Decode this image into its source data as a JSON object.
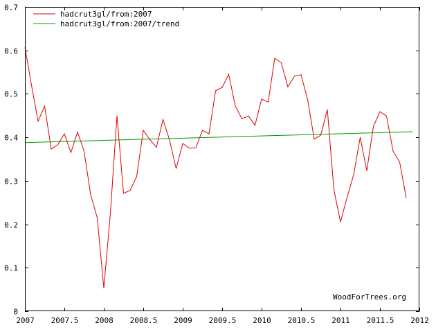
{
  "chart_data": {
    "type": "line",
    "title": "",
    "xlabel": "",
    "ylabel": "",
    "xlim": [
      2007,
      2012
    ],
    "ylim": [
      0,
      0.7
    ],
    "grid": false,
    "legend_position": "top-left",
    "x_ticks": [
      "2007",
      "2007.5",
      "2008",
      "2008.5",
      "2009",
      "2009.5",
      "2010",
      "2010.5",
      "2011",
      "2011.5",
      "2012"
    ],
    "y_ticks": [
      "0",
      "0.1",
      "0.2",
      "0.3",
      "0.4",
      "0.5",
      "0.6",
      "0.7"
    ],
    "series": [
      {
        "name": "hadcrut3gl/from:2007",
        "color": "#dd0000",
        "x": [
          2007.0,
          2007.083,
          2007.167,
          2007.25,
          2007.333,
          2007.417,
          2007.5,
          2007.583,
          2007.667,
          2007.75,
          2007.833,
          2007.917,
          2008.0,
          2008.083,
          2008.167,
          2008.25,
          2008.333,
          2008.417,
          2008.5,
          2008.583,
          2008.667,
          2008.75,
          2008.833,
          2008.917,
          2009.0,
          2009.083,
          2009.167,
          2009.25,
          2009.333,
          2009.417,
          2009.5,
          2009.583,
          2009.667,
          2009.75,
          2009.833,
          2009.917,
          2010.0,
          2010.083,
          2010.167,
          2010.25,
          2010.333,
          2010.417,
          2010.5,
          2010.583,
          2010.667,
          2010.75,
          2010.833,
          2010.917,
          2011.0,
          2011.083,
          2011.167,
          2011.25,
          2011.333,
          2011.417,
          2011.5,
          2011.583,
          2011.667,
          2011.75,
          2011.833
        ],
        "y": [
          0.607,
          0.52,
          0.437,
          0.472,
          0.373,
          0.383,
          0.408,
          0.365,
          0.412,
          0.368,
          0.268,
          0.215,
          0.053,
          0.225,
          0.45,
          0.271,
          0.278,
          0.31,
          0.416,
          0.395,
          0.377,
          0.441,
          0.394,
          0.328,
          0.386,
          0.375,
          0.376,
          0.416,
          0.408,
          0.507,
          0.515,
          0.545,
          0.472,
          0.443,
          0.449,
          0.428,
          0.488,
          0.481,
          0.582,
          0.571,
          0.516,
          0.541,
          0.544,
          0.487,
          0.396,
          0.405,
          0.464,
          0.279,
          0.205,
          0.262,
          0.314,
          0.4,
          0.323,
          0.425,
          0.459,
          0.449,
          0.368,
          0.343,
          0.26
        ]
      },
      {
        "name": "hadcrut3gl/from:2007/trend",
        "color": "#009900",
        "x": [
          2007.0,
          2011.917
        ],
        "y": [
          0.388,
          0.413
        ]
      }
    ],
    "annotation": "WoodForTrees.org"
  }
}
